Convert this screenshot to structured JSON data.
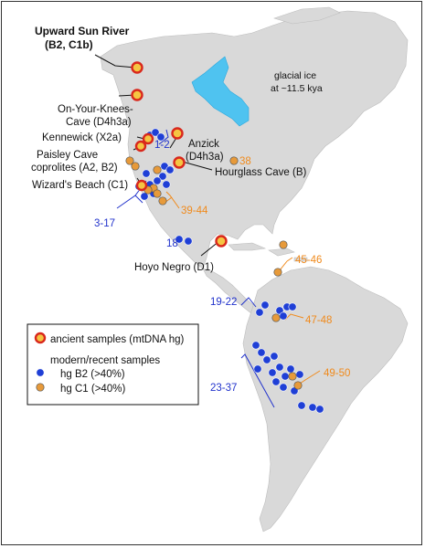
{
  "map": {
    "glacial_ice_label": [
      "glacial ice",
      "at ~11.5 kya"
    ],
    "colors": {
      "land": "#d9d9d9",
      "ice_lake": "#4fc3f0",
      "ancient_fill": "#f5c542",
      "ancient_ring": "#d9281c",
      "hg_b2": "#1f3fd6",
      "hg_c1": "#e79a3a",
      "blue_leader": "#2233cc",
      "orange_leader": "#f08a1c"
    }
  },
  "ancient_sites": [
    {
      "lines": [
        "Upward Sun River",
        "(B2, C1b)"
      ],
      "bold": true
    },
    {
      "lines": [
        "On-Your-Knees-",
        "Cave (D4h3a)"
      ]
    },
    {
      "lines": [
        "Kennewick (X2a)"
      ]
    },
    {
      "lines": [
        "Paisley Cave",
        "coprolites (A2, B2)"
      ]
    },
    {
      "lines": [
        "Wizard's Beach (C1)"
      ]
    },
    {
      "lines": [
        "Anzick",
        "(D4h3a)"
      ]
    },
    {
      "lines": [
        "Hourglass Cave (B)"
      ]
    },
    {
      "lines": [
        "Hoyo Negro (D1)"
      ]
    }
  ],
  "sample_groups": {
    "blue": [
      "1-2",
      "3-17",
      "18",
      "19-22",
      "23-37"
    ],
    "orange": [
      "38",
      "39-44",
      "45-46",
      "47-48",
      "49-50"
    ]
  },
  "legend": {
    "ancient_label": "ancient samples (mtDNA hg)",
    "modern_title": "modern/recent samples",
    "b2_label": "hg B2 (>40%)",
    "c1_label": "hg C1 (>40%)"
  }
}
